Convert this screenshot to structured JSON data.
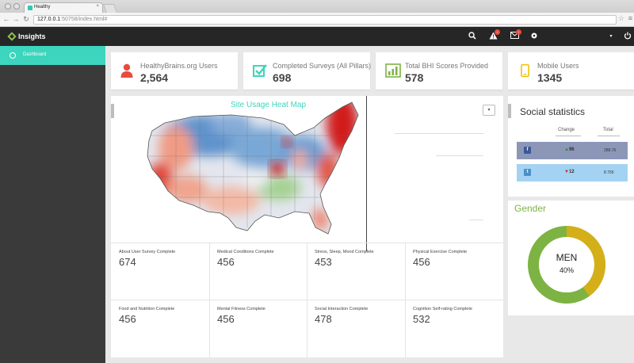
{
  "browser": {
    "tab_title": "Healthy",
    "tab_close": "×",
    "url_host": "127.0.0.1",
    "url_path": ":50758/index.html#"
  },
  "app": {
    "brand": "Insights",
    "alerts_badge": "!",
    "messages_badge": "!"
  },
  "sidebar": {
    "items": [
      {
        "label": "Dashboard",
        "icon": "dashboard-icon"
      }
    ]
  },
  "stats": [
    {
      "label": "HealthyBrains.org Users",
      "value": "2,564",
      "icon": "user-icon",
      "color": "#e74c3c"
    },
    {
      "label": "Completed Surveys (All Pillars)",
      "value": "698",
      "icon": "checkbox-icon",
      "color": "#3dd5bd"
    },
    {
      "label": "Total BHI Scores Provided",
      "value": "578",
      "icon": "bar-chart-icon",
      "color": "#7cb342"
    },
    {
      "label": "Mobile Users",
      "value": "1345",
      "icon": "mobile-icon",
      "color": "#f1c40f"
    }
  ],
  "heatmap": {
    "title": "Site Usage Heat Map",
    "dropdown": "▾"
  },
  "metrics": [
    {
      "label": "About User Survey Complete",
      "value": "674"
    },
    {
      "label": "Medical Conditions Complete",
      "value": "456"
    },
    {
      "label": "Stress, Sleep, Mood Complete",
      "value": "453"
    },
    {
      "label": "Physical Exercise Complete",
      "value": "456"
    },
    {
      "label": "Food and Nutrition Complete",
      "value": "456"
    },
    {
      "label": "Mental Fitness Complete",
      "value": "456"
    },
    {
      "label": "Social Interaction Complete",
      "value": "478"
    },
    {
      "label": "Cognition Self-rating Complete",
      "value": "532"
    }
  ],
  "social": {
    "title": "Social statistics",
    "col_change": "Change",
    "col_total": "Total",
    "rows": [
      {
        "network": "facebook",
        "icon": "facebook-icon",
        "icon_glyph": "f",
        "change": "96",
        "direction": "up",
        "total": "288.76",
        "bg": "#8c97b8"
      },
      {
        "network": "twitter",
        "icon": "twitter-icon",
        "icon_glyph": "t",
        "change": "12",
        "direction": "down",
        "total": "8.765",
        "bg": "#a4d2f2"
      }
    ]
  },
  "gender": {
    "title": "Gender",
    "label": "MEN",
    "percent": "40%",
    "men_fraction": 0.4,
    "colors": {
      "men": "#d4af1a",
      "women": "#7cb342"
    }
  }
}
